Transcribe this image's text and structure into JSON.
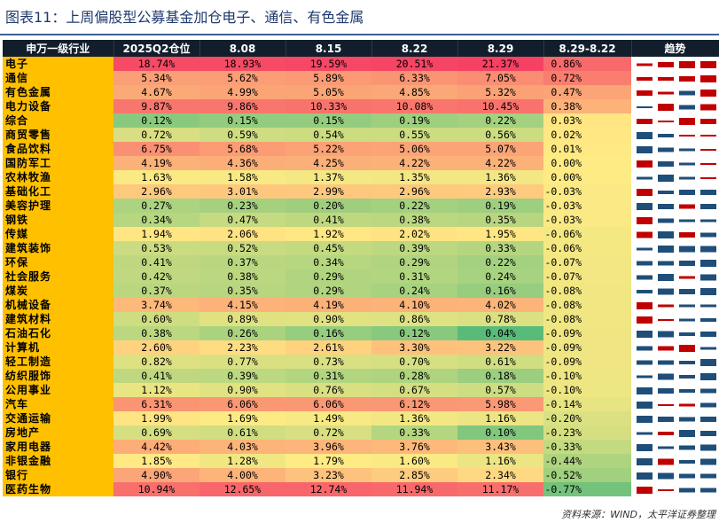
{
  "title": "图表11：上周偏股型公募基金加仓电子、通信、有色金属",
  "source": "资料来源：WIND，太平洋证券整理",
  "colors": {
    "header_bg": "#121e2c",
    "industry_bg": "#ffc000",
    "up": "#c00000",
    "down": "#1f4e79"
  },
  "headers": [
    "申万一级行业",
    "2025Q2仓位",
    "8.08",
    "8.15",
    "8.22",
    "8.29",
    "8.29-8.22",
    "趋势"
  ],
  "rows": [
    {
      "name": "电子",
      "q2": "18.74%",
      "d0808": "18.93%",
      "d0815": "19.59%",
      "d0822": "20.51%",
      "d0829": "21.37%",
      "diff": "0.86%"
    },
    {
      "name": "通信",
      "q2": "5.34%",
      "d0808": "5.62%",
      "d0815": "5.89%",
      "d0822": "6.33%",
      "d0829": "7.05%",
      "diff": "0.72%"
    },
    {
      "name": "有色金属",
      "q2": "4.67%",
      "d0808": "4.99%",
      "d0815": "5.05%",
      "d0822": "4.85%",
      "d0829": "5.32%",
      "diff": "0.47%"
    },
    {
      "name": "电力设备",
      "q2": "9.87%",
      "d0808": "9.86%",
      "d0815": "10.33%",
      "d0822": "10.08%",
      "d0829": "10.45%",
      "diff": "0.38%"
    },
    {
      "name": "综合",
      "q2": "0.12%",
      "d0808": "0.15%",
      "d0815": "0.15%",
      "d0822": "0.19%",
      "d0829": "0.22%",
      "diff": "0.03%"
    },
    {
      "name": "商贸零售",
      "q2": "0.72%",
      "d0808": "0.59%",
      "d0815": "0.54%",
      "d0822": "0.55%",
      "d0829": "0.56%",
      "diff": "0.02%"
    },
    {
      "name": "食品饮料",
      "q2": "6.75%",
      "d0808": "5.68%",
      "d0815": "5.22%",
      "d0822": "5.06%",
      "d0829": "5.07%",
      "diff": "0.01%"
    },
    {
      "name": "国防军工",
      "q2": "4.19%",
      "d0808": "4.36%",
      "d0815": "4.25%",
      "d0822": "4.22%",
      "d0829": "4.22%",
      "diff": "0.00%"
    },
    {
      "name": "农林牧渔",
      "q2": "1.63%",
      "d0808": "1.58%",
      "d0815": "1.37%",
      "d0822": "1.35%",
      "d0829": "1.36%",
      "diff": "0.00%"
    },
    {
      "name": "基础化工",
      "q2": "2.96%",
      "d0808": "3.01%",
      "d0815": "2.99%",
      "d0822": "2.96%",
      "d0829": "2.93%",
      "diff": "-0.03%"
    },
    {
      "name": "美容护理",
      "q2": "0.27%",
      "d0808": "0.23%",
      "d0815": "0.20%",
      "d0822": "0.22%",
      "d0829": "0.19%",
      "diff": "-0.03%"
    },
    {
      "name": "钢铁",
      "q2": "0.34%",
      "d0808": "0.47%",
      "d0815": "0.41%",
      "d0822": "0.38%",
      "d0829": "0.35%",
      "diff": "-0.03%"
    },
    {
      "name": "传媒",
      "q2": "1.94%",
      "d0808": "2.06%",
      "d0815": "1.92%",
      "d0822": "2.02%",
      "d0829": "1.95%",
      "diff": "-0.06%"
    },
    {
      "name": "建筑装饰",
      "q2": "0.53%",
      "d0808": "0.52%",
      "d0815": "0.45%",
      "d0822": "0.39%",
      "d0829": "0.33%",
      "diff": "-0.06%"
    },
    {
      "name": "环保",
      "q2": "0.41%",
      "d0808": "0.37%",
      "d0815": "0.34%",
      "d0822": "0.29%",
      "d0829": "0.22%",
      "diff": "-0.07%"
    },
    {
      "name": "社会服务",
      "q2": "0.42%",
      "d0808": "0.38%",
      "d0815": "0.29%",
      "d0822": "0.31%",
      "d0829": "0.24%",
      "diff": "-0.07%"
    },
    {
      "name": "煤炭",
      "q2": "0.37%",
      "d0808": "0.35%",
      "d0815": "0.29%",
      "d0822": "0.24%",
      "d0829": "0.16%",
      "diff": "-0.08%"
    },
    {
      "name": "机械设备",
      "q2": "3.74%",
      "d0808": "4.15%",
      "d0815": "4.19%",
      "d0822": "4.10%",
      "d0829": "4.02%",
      "diff": "-0.08%"
    },
    {
      "name": "建筑材料",
      "q2": "0.60%",
      "d0808": "0.89%",
      "d0815": "0.90%",
      "d0822": "0.86%",
      "d0829": "0.78%",
      "diff": "-0.08%"
    },
    {
      "name": "石油石化",
      "q2": "0.38%",
      "d0808": "0.26%",
      "d0815": "0.16%",
      "d0822": "0.12%",
      "d0829": "0.04%",
      "diff": "-0.09%"
    },
    {
      "name": "计算机",
      "q2": "2.60%",
      "d0808": "2.23%",
      "d0815": "2.61%",
      "d0822": "3.30%",
      "d0829": "3.22%",
      "diff": "-0.09%"
    },
    {
      "name": "轻工制造",
      "q2": "0.82%",
      "d0808": "0.77%",
      "d0815": "0.73%",
      "d0822": "0.70%",
      "d0829": "0.61%",
      "diff": "-0.09%"
    },
    {
      "name": "纺织服饰",
      "q2": "0.41%",
      "d0808": "0.39%",
      "d0815": "0.31%",
      "d0822": "0.28%",
      "d0829": "0.18%",
      "diff": "-0.10%"
    },
    {
      "name": "公用事业",
      "q2": "1.12%",
      "d0808": "0.90%",
      "d0815": "0.76%",
      "d0822": "0.67%",
      "d0829": "0.57%",
      "diff": "-0.10%"
    },
    {
      "name": "汽车",
      "q2": "6.31%",
      "d0808": "6.06%",
      "d0815": "6.06%",
      "d0822": "6.12%",
      "d0829": "5.98%",
      "diff": "-0.14%"
    },
    {
      "name": "交通运输",
      "q2": "1.99%",
      "d0808": "1.69%",
      "d0815": "1.49%",
      "d0822": "1.36%",
      "d0829": "1.16%",
      "diff": "-0.20%"
    },
    {
      "name": "房地产",
      "q2": "0.69%",
      "d0808": "0.61%",
      "d0815": "0.72%",
      "d0822": "0.33%",
      "d0829": "0.10%",
      "diff": "-0.23%"
    },
    {
      "name": "家用电器",
      "q2": "4.42%",
      "d0808": "4.03%",
      "d0815": "3.96%",
      "d0822": "3.76%",
      "d0829": "3.43%",
      "diff": "-0.33%"
    },
    {
      "name": "非银金融",
      "q2": "1.85%",
      "d0808": "1.28%",
      "d0815": "1.79%",
      "d0822": "1.60%",
      "d0829": "1.16%",
      "diff": "-0.44%"
    },
    {
      "name": "银行",
      "q2": "4.90%",
      "d0808": "4.00%",
      "d0815": "3.23%",
      "d0822": "2.85%",
      "d0829": "2.34%",
      "diff": "-0.52%"
    },
    {
      "name": "医药生物",
      "q2": "10.94%",
      "d0808": "12.65%",
      "d0815": "12.74%",
      "d0822": "11.94%",
      "d0829": "11.17%",
      "diff": "-0.77%"
    }
  ],
  "chart_data": {
    "type": "table",
    "columns": [
      "申万一级行业",
      "2025Q2仓位",
      "8.08",
      "8.15",
      "8.22",
      "8.29",
      "8.29-8.22"
    ],
    "categories": [
      "电子",
      "通信",
      "有色金属",
      "电力设备",
      "综合",
      "商贸零售",
      "食品饮料",
      "国防军工",
      "农林牧渔",
      "基础化工",
      "美容护理",
      "钢铁",
      "传媒",
      "建筑装饰",
      "环保",
      "社会服务",
      "煤炭",
      "机械设备",
      "建筑材料",
      "石油石化",
      "计算机",
      "轻工制造",
      "纺织服饰",
      "公用事业",
      "汽车",
      "交通运输",
      "房地产",
      "家用电器",
      "非银金融",
      "银行",
      "医药生物"
    ],
    "series": [
      {
        "name": "2025Q2仓位",
        "values": [
          18.74,
          5.34,
          4.67,
          9.87,
          0.12,
          0.72,
          6.75,
          4.19,
          1.63,
          2.96,
          0.27,
          0.34,
          1.94,
          0.53,
          0.41,
          0.42,
          0.37,
          3.74,
          0.6,
          0.38,
          2.6,
          0.82,
          0.41,
          1.12,
          6.31,
          1.99,
          0.69,
          4.42,
          1.85,
          4.9,
          10.94
        ]
      },
      {
        "name": "8.08",
        "values": [
          18.93,
          5.62,
          4.99,
          9.86,
          0.15,
          0.59,
          5.68,
          4.36,
          1.58,
          3.01,
          0.23,
          0.47,
          2.06,
          0.52,
          0.37,
          0.38,
          0.35,
          4.15,
          0.89,
          0.26,
          2.23,
          0.77,
          0.39,
          0.9,
          6.06,
          1.69,
          0.61,
          4.03,
          1.28,
          4.0,
          12.65
        ]
      },
      {
        "name": "8.15",
        "values": [
          19.59,
          5.89,
          5.05,
          10.33,
          0.15,
          0.54,
          5.22,
          4.25,
          1.37,
          2.99,
          0.2,
          0.41,
          1.92,
          0.45,
          0.34,
          0.29,
          0.29,
          4.19,
          0.9,
          0.16,
          2.61,
          0.73,
          0.31,
          0.76,
          6.06,
          1.49,
          0.72,
          3.96,
          1.79,
          3.23,
          12.74
        ]
      },
      {
        "name": "8.22",
        "values": [
          20.51,
          6.33,
          4.85,
          10.08,
          0.19,
          0.55,
          5.06,
          4.22,
          1.35,
          2.96,
          0.22,
          0.38,
          2.02,
          0.39,
          0.29,
          0.31,
          0.24,
          4.1,
          0.86,
          0.12,
          3.3,
          0.7,
          0.28,
          0.67,
          6.12,
          1.36,
          0.33,
          3.76,
          1.6,
          2.85,
          11.94
        ]
      },
      {
        "name": "8.29",
        "values": [
          21.37,
          7.05,
          5.32,
          10.45,
          0.22,
          0.56,
          5.07,
          4.22,
          1.36,
          2.93,
          0.19,
          0.35,
          1.95,
          0.33,
          0.22,
          0.24,
          0.16,
          4.02,
          0.78,
          0.04,
          3.22,
          0.61,
          0.18,
          0.57,
          5.98,
          1.16,
          0.1,
          3.43,
          1.16,
          2.34,
          11.17
        ]
      },
      {
        "name": "8.29-8.22",
        "values": [
          0.86,
          0.72,
          0.47,
          0.38,
          0.03,
          0.02,
          0.01,
          0.0,
          0.0,
          -0.03,
          -0.03,
          -0.03,
          -0.06,
          -0.06,
          -0.07,
          -0.07,
          -0.08,
          -0.08,
          -0.08,
          -0.09,
          -0.09,
          -0.09,
          -0.1,
          -0.1,
          -0.14,
          -0.2,
          -0.23,
          -0.33,
          -0.44,
          -0.52,
          -0.77
        ]
      }
    ]
  }
}
